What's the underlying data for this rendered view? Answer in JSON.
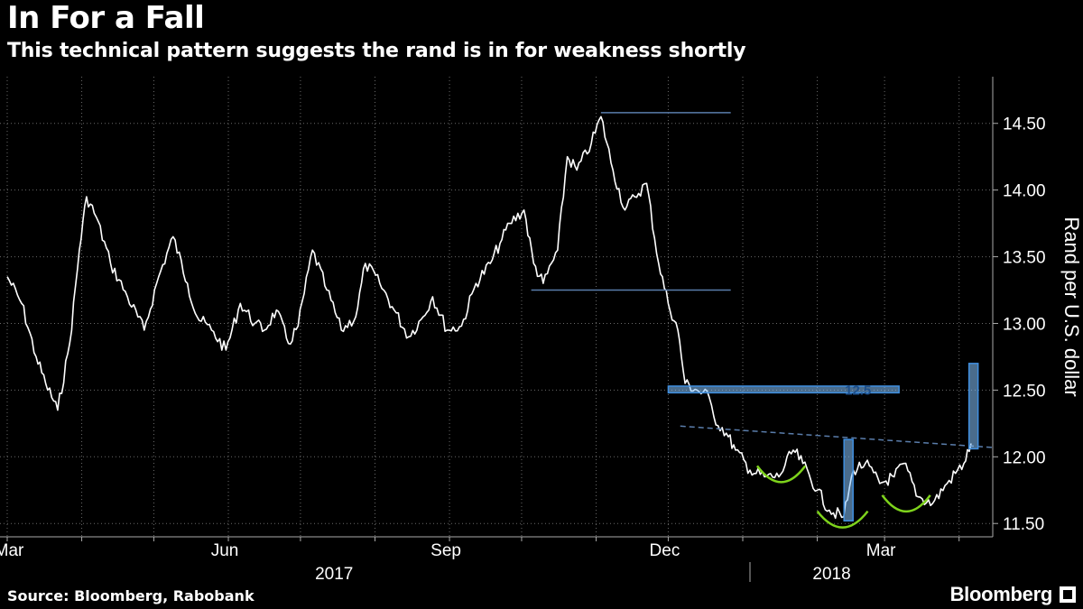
{
  "header": {
    "title": "In For a Fall",
    "subtitle": "This technical pattern suggests the rand is in for weakness shortly"
  },
  "footer": {
    "source": "Source: Bloomberg, Rabobank",
    "brand": "Bloomberg"
  },
  "colors": {
    "background": "#000000",
    "price_line": "#ffffff",
    "grid": "#6a6a6a",
    "annotation_blue": "#3f8fe0",
    "annotation_blue_fill": "#86c5ff",
    "neckline": "#5a7dab",
    "arc_green": "#7ed31c"
  },
  "chart_data": {
    "type": "line",
    "title": "In For a Fall",
    "ylabel": "Rand per U.S. dollar",
    "ylim": [
      11.4,
      14.85
    ],
    "yticks": [
      11.5,
      12.0,
      12.5,
      13.0,
      13.5,
      14.0,
      14.5
    ],
    "ytick_labels": [
      "11.50",
      "12.00",
      "12.50",
      "13.00",
      "13.50",
      "14.00",
      "14.50"
    ],
    "xlim": [
      "2017-03-01",
      "2018-04-15"
    ],
    "month_ticks": [
      {
        "date": "2017-03-01",
        "label": "Mar"
      },
      {
        "date": "2017-04-01",
        "label": ""
      },
      {
        "date": "2017-05-01",
        "label": ""
      },
      {
        "date": "2017-06-01",
        "label": "Jun"
      },
      {
        "date": "2017-07-01",
        "label": ""
      },
      {
        "date": "2017-08-01",
        "label": ""
      },
      {
        "date": "2017-09-01",
        "label": "Sep"
      },
      {
        "date": "2017-10-01",
        "label": ""
      },
      {
        "date": "2017-11-01",
        "label": ""
      },
      {
        "date": "2017-12-01",
        "label": "Dec"
      },
      {
        "date": "2018-01-01",
        "label": ""
      },
      {
        "date": "2018-02-01",
        "label": ""
      },
      {
        "date": "2018-03-01",
        "label": "Mar"
      },
      {
        "date": "2018-04-01",
        "label": ""
      }
    ],
    "year_labels": [
      {
        "label": "2017",
        "center": "2017-07-15"
      },
      {
        "label": "2018",
        "center": "2018-02-07"
      }
    ],
    "year_divider": "2018-01-01",
    "grid": true,
    "series": [
      {
        "dates": [
          "2017-03-01",
          "2017-03-07",
          "2017-03-13",
          "2017-03-17",
          "2017-03-22",
          "2017-03-27",
          "2017-03-31",
          "2017-04-03",
          "2017-04-07",
          "2017-04-13",
          "2017-04-20",
          "2017-04-27",
          "2017-05-03",
          "2017-05-09",
          "2017-05-15",
          "2017-05-19",
          "2017-05-25",
          "2017-05-31",
          "2017-06-06",
          "2017-06-12",
          "2017-06-16",
          "2017-06-21",
          "2017-06-26",
          "2017-06-30",
          "2017-07-06",
          "2017-07-12",
          "2017-07-18",
          "2017-07-24",
          "2017-07-28",
          "2017-08-03",
          "2017-08-09",
          "2017-08-15",
          "2017-08-21",
          "2017-08-25",
          "2017-08-31",
          "2017-09-06",
          "2017-09-12",
          "2017-09-18",
          "2017-09-22",
          "2017-09-26",
          "2017-10-02",
          "2017-10-06",
          "2017-10-10",
          "2017-10-16",
          "2017-10-20",
          "2017-10-24",
          "2017-10-30",
          "2017-11-03",
          "2017-11-08",
          "2017-11-13",
          "2017-11-17",
          "2017-11-22",
          "2017-11-27",
          "2017-12-01",
          "2017-12-05",
          "2017-12-08",
          "2017-12-13",
          "2017-12-18",
          "2017-12-20",
          "2017-12-26",
          "2017-12-29",
          "2018-01-04",
          "2018-01-10",
          "2018-01-16",
          "2018-01-22",
          "2018-01-26",
          "2018-02-01",
          "2018-02-06",
          "2018-02-12",
          "2018-02-16",
          "2018-02-21",
          "2018-02-27",
          "2018-03-05",
          "2018-03-09",
          "2018-03-15",
          "2018-03-21",
          "2018-03-27",
          "2018-04-03",
          "2018-04-06"
        ],
        "values": [
          13.35,
          13.15,
          12.75,
          12.55,
          12.35,
          12.85,
          13.55,
          13.95,
          13.8,
          13.45,
          13.2,
          12.95,
          13.35,
          13.65,
          13.3,
          13.05,
          12.95,
          12.8,
          13.15,
          13.0,
          12.95,
          13.1,
          12.85,
          12.98,
          13.55,
          13.25,
          12.95,
          13.05,
          13.45,
          13.3,
          13.1,
          12.9,
          13.05,
          13.2,
          12.95,
          12.98,
          13.3,
          13.45,
          13.6,
          13.75,
          13.85,
          13.45,
          13.3,
          13.55,
          14.25,
          14.15,
          14.35,
          14.55,
          14.15,
          13.85,
          13.95,
          14.05,
          13.45,
          13.15,
          12.95,
          12.55,
          12.5,
          12.45,
          12.3,
          12.15,
          12.05,
          11.9,
          11.85,
          11.85,
          12.05,
          11.95,
          11.75,
          11.6,
          11.55,
          11.9,
          11.95,
          11.8,
          11.85,
          11.95,
          11.7,
          11.65,
          11.8,
          11.95,
          12.1
        ]
      }
    ],
    "annotations": {
      "top_level": {
        "from": "2017-11-03",
        "to": "2017-12-27",
        "value": 14.58
      },
      "support_level": {
        "from": "2017-10-05",
        "to": "2017-12-27",
        "value": 13.25
      },
      "target_band": {
        "from": "2017-12-01",
        "to": "2018-03-07",
        "low": 12.48,
        "high": 12.53,
        "label": "12.5"
      },
      "neckline": {
        "from": "2017-12-06",
        "to": "2018-04-15",
        "start": 12.23,
        "end": 12.07
      },
      "breakout_box": {
        "date": "2018-04-07",
        "low": 12.06,
        "high": 12.7
      },
      "head_box": {
        "date": "2018-02-14",
        "low": 11.52,
        "high": 12.13
      },
      "arcs": [
        {
          "from": "2018-01-07",
          "to": "2018-01-27",
          "bottom": 11.81
        },
        {
          "from": "2018-02-01",
          "to": "2018-02-22",
          "bottom": 11.47
        },
        {
          "from": "2018-02-28",
          "to": "2018-03-20",
          "bottom": 11.59
        }
      ]
    }
  }
}
